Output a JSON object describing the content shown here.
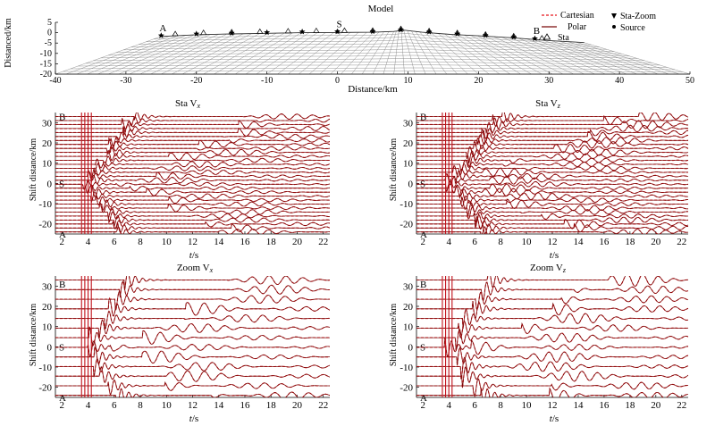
{
  "colors": {
    "cartesian": "#e8141b",
    "polar": "#7a0a0a",
    "axis": "#000000",
    "grid": "#777777"
  },
  "chart_data": [
    {
      "type": "scatter",
      "panel": "model",
      "title": "Model",
      "xlabel": "Distance/km",
      "ylabel": "Distanced/km",
      "xlim": [
        -40,
        50
      ],
      "ylim": [
        -20,
        5
      ],
      "xticks": [
        "-40",
        "-30",
        "-20",
        "-10",
        "0",
        "10",
        "20",
        "30",
        "40",
        "50"
      ],
      "yticks": [
        "5",
        "0",
        "-5",
        "-10",
        "-15",
        "-20"
      ],
      "surface": {
        "x": [
          -25,
          -20,
          -15,
          -10,
          -5,
          0,
          5,
          8,
          9.5,
          12,
          16,
          20,
          25,
          30,
          35
        ],
        "top": [
          -1.8,
          -1.0,
          -0.6,
          -0.3,
          0.0,
          0.1,
          0.2,
          0.6,
          1.2,
          0.2,
          -0.8,
          -1.5,
          -2.5,
          -3.8,
          -4.8
        ]
      },
      "surface_ends": {
        "left": -40,
        "right": 50,
        "bottom": -20
      },
      "stations_x": [
        -23,
        -19,
        -15,
        -11,
        -7,
        -3,
        1,
        5,
        9,
        13,
        17,
        21,
        25,
        29
      ],
      "zoom_x": [
        -25,
        -20,
        -15,
        -10,
        -5,
        0,
        5,
        9,
        13,
        17,
        21,
        25,
        28
      ],
      "source_x": 0,
      "labels": [
        {
          "text": "A",
          "x": -25
        },
        {
          "text": "S",
          "x": 0
        },
        {
          "text": "B",
          "x": 28
        }
      ],
      "legend": [
        {
          "label": "Cartesian",
          "style": "dashed-red"
        },
        {
          "label": "Polar",
          "style": "solid-dark"
        },
        {
          "label": "Sta",
          "style": "triangle"
        },
        {
          "label": "Sta-Zoom",
          "style": "down-triangle"
        },
        {
          "label": "Source",
          "style": "dot"
        }
      ]
    },
    {
      "type": "line",
      "panel": "sta_vx",
      "title": "Sta V",
      "subscript": "x",
      "xlabel_italic": "t",
      "xlabel_rest": "/s",
      "ylabel": "Shift distance/km",
      "xlim": [
        1.5,
        22.5
      ],
      "ylim": [
        -25,
        35
      ],
      "xticks": [
        2,
        4,
        6,
        8,
        10,
        12,
        14,
        16,
        18,
        20,
        22
      ],
      "yticks": [
        30,
        20,
        10,
        0,
        -10,
        -20
      ],
      "markers": [
        {
          "text": "B",
          "y": 33
        },
        {
          "text": "S",
          "y": 0
        },
        {
          "text": "A",
          "y": -25
        }
      ],
      "traces": 30,
      "arrival_start": 3.5,
      "slowness": 0.3,
      "flat_until": 5.5,
      "amplitude": 2.0,
      "period": 1.2
    },
    {
      "type": "line",
      "panel": "sta_vz",
      "title": "Sta V",
      "subscript": "z",
      "xlabel_italic": "t",
      "xlabel_rest": "/s",
      "ylabel": "Shift distance/km",
      "xlim": [
        1.5,
        22.5
      ],
      "ylim": [
        -25,
        35
      ],
      "xticks": [
        2,
        4,
        6,
        8,
        10,
        12,
        14,
        16,
        18,
        20,
        22
      ],
      "yticks": [
        30,
        20,
        10,
        0,
        -10,
        -20
      ],
      "markers": [
        {
          "text": "B",
          "y": 33
        },
        {
          "text": "S",
          "y": 0
        },
        {
          "text": "A",
          "y": -25
        }
      ],
      "traces": 30,
      "arrival_start": 3.5,
      "slowness": 0.35,
      "flat_until": 4.5,
      "amplitude": 2.4,
      "period": 1.1
    },
    {
      "type": "line",
      "panel": "zoom_vx",
      "title": "Zoom V",
      "subscript": "x",
      "xlabel_italic": "t",
      "xlabel_rest": "/s",
      "ylabel": "Shift distance/km",
      "xlim": [
        1.5,
        22.5
      ],
      "ylim": [
        -25,
        35
      ],
      "xticks": [
        2,
        4,
        6,
        8,
        10,
        12,
        14,
        16,
        18,
        20,
        22
      ],
      "yticks": [
        30,
        20,
        10,
        0,
        -10,
        -20
      ],
      "markers": [
        {
          "text": "B",
          "y": 31
        },
        {
          "text": "S",
          "y": 0
        },
        {
          "text": "A",
          "y": -25
        }
      ],
      "traces": 13,
      "arrival_start": 3.5,
      "slowness": 0.25,
      "flat_until": 5.0,
      "amplitude": 3.5,
      "period": 1.3
    },
    {
      "type": "line",
      "panel": "zoom_vz",
      "title": "Zoom V",
      "subscript": "z",
      "xlabel_italic": "t",
      "xlabel_rest": "/s",
      "ylabel": "Shift distance/km",
      "xlim": [
        1.5,
        22.5
      ],
      "ylim": [
        -25,
        35
      ],
      "xticks": [
        2,
        4,
        6,
        8,
        10,
        12,
        14,
        16,
        18,
        20,
        22
      ],
      "yticks": [
        30,
        20,
        10,
        0,
        -10,
        -20
      ],
      "markers": [
        {
          "text": "B",
          "y": 31
        },
        {
          "text": "S",
          "y": 0
        },
        {
          "text": "A",
          "y": -25
        }
      ],
      "traces": 13,
      "arrival_start": 3.5,
      "slowness": 0.3,
      "flat_until": 4.5,
      "amplitude": 4.0,
      "period": 1.2
    }
  ]
}
